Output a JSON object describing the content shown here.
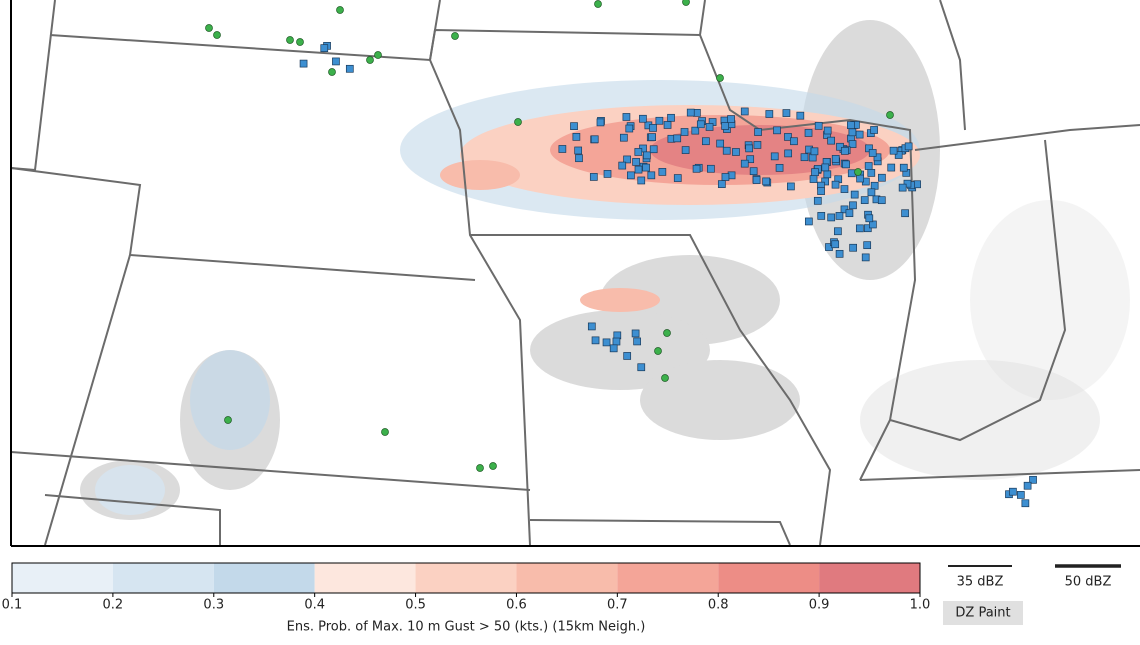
{
  "colorbar": {
    "label": "Ens. Prob. of Max. 10 m Gust > 50 (kts.) (15km Neigh.)",
    "lim": [
      0.1,
      1
    ],
    "ticks": [
      0.1,
      0.2,
      0.3,
      0.4,
      0.5,
      0.6,
      0.7,
      0.8,
      0.9,
      {
        "value": 1,
        "label": "1.0"
      }
    ],
    "colors": [
      "#e8f0f7",
      "#d6e5f1",
      "#c3d9ea",
      "#fde7de",
      "#fbd1c2",
      "#f8bcab",
      "#f4a598",
      "#ed8d86",
      "#e07a7f"
    ]
  },
  "legend": {
    "items": [
      {
        "label": "35 dBZ"
      },
      {
        "label": "50 dBZ"
      }
    ],
    "button": "DZ Paint"
  }
}
